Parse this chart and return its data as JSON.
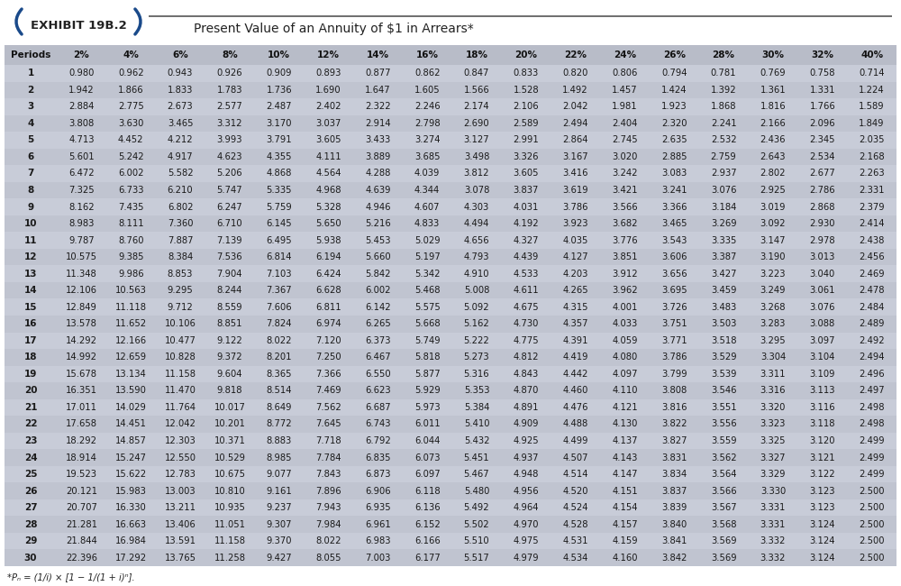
{
  "title": "Present Value of an Annuity of $1 in Arrears*",
  "exhibit_label": "EXHIBIT 19B.2",
  "footnote": "*Pₙ = (1/i) × [1 − 1/(1 + i)ⁿ].",
  "columns": [
    "Periods",
    "2%",
    "4%",
    "6%",
    "8%",
    "10%",
    "12%",
    "14%",
    "16%",
    "18%",
    "20%",
    "22%",
    "24%",
    "26%",
    "28%",
    "30%",
    "32%",
    "40%"
  ],
  "rows": [
    [
      1,
      0.98,
      0.962,
      0.943,
      0.926,
      0.909,
      0.893,
      0.877,
      0.862,
      0.847,
      0.833,
      0.82,
      0.806,
      0.794,
      0.781,
      0.769,
      0.758,
      0.714
    ],
    [
      2,
      1.942,
      1.866,
      1.833,
      1.783,
      1.736,
      1.69,
      1.647,
      1.605,
      1.566,
      1.528,
      1.492,
      1.457,
      1.424,
      1.392,
      1.361,
      1.331,
      1.224
    ],
    [
      3,
      2.884,
      2.775,
      2.673,
      2.577,
      2.487,
      2.402,
      2.322,
      2.246,
      2.174,
      2.106,
      2.042,
      1.981,
      1.923,
      1.868,
      1.816,
      1.766,
      1.589
    ],
    [
      4,
      3.808,
      3.63,
      3.465,
      3.312,
      3.17,
      3.037,
      2.914,
      2.798,
      2.69,
      2.589,
      2.494,
      2.404,
      2.32,
      2.241,
      2.166,
      2.096,
      1.849
    ],
    [
      5,
      4.713,
      4.452,
      4.212,
      3.993,
      3.791,
      3.605,
      3.433,
      3.274,
      3.127,
      2.991,
      2.864,
      2.745,
      2.635,
      2.532,
      2.436,
      2.345,
      2.035
    ],
    [
      6,
      5.601,
      5.242,
      4.917,
      4.623,
      4.355,
      4.111,
      3.889,
      3.685,
      3.498,
      3.326,
      3.167,
      3.02,
      2.885,
      2.759,
      2.643,
      2.534,
      2.168
    ],
    [
      7,
      6.472,
      6.002,
      5.582,
      5.206,
      4.868,
      4.564,
      4.288,
      4.039,
      3.812,
      3.605,
      3.416,
      3.242,
      3.083,
      2.937,
      2.802,
      2.677,
      2.263
    ],
    [
      8,
      7.325,
      6.733,
      6.21,
      5.747,
      5.335,
      4.968,
      4.639,
      4.344,
      3.078,
      3.837,
      3.619,
      3.421,
      3.241,
      3.076,
      2.925,
      2.786,
      2.331
    ],
    [
      9,
      8.162,
      7.435,
      6.802,
      6.247,
      5.759,
      5.328,
      4.946,
      4.607,
      4.303,
      4.031,
      3.786,
      3.566,
      3.366,
      3.184,
      3.019,
      2.868,
      2.379
    ],
    [
      10,
      8.983,
      8.111,
      7.36,
      6.71,
      6.145,
      5.65,
      5.216,
      4.833,
      4.494,
      4.192,
      3.923,
      3.682,
      3.465,
      3.269,
      3.092,
      2.93,
      2.414
    ],
    [
      11,
      9.787,
      8.76,
      7.887,
      7.139,
      6.495,
      5.938,
      5.453,
      5.029,
      4.656,
      4.327,
      4.035,
      3.776,
      3.543,
      3.335,
      3.147,
      2.978,
      2.438
    ],
    [
      12,
      10.575,
      9.385,
      8.384,
      7.536,
      6.814,
      6.194,
      5.66,
      5.197,
      4.793,
      4.439,
      4.127,
      3.851,
      3.606,
      3.387,
      3.19,
      3.013,
      2.456
    ],
    [
      13,
      11.348,
      9.986,
      8.853,
      7.904,
      7.103,
      6.424,
      5.842,
      5.342,
      4.91,
      4.533,
      4.203,
      3.912,
      3.656,
      3.427,
      3.223,
      3.04,
      2.469
    ],
    [
      14,
      12.106,
      10.563,
      9.295,
      8.244,
      7.367,
      6.628,
      6.002,
      5.468,
      5.008,
      4.611,
      4.265,
      3.962,
      3.695,
      3.459,
      3.249,
      3.061,
      2.478
    ],
    [
      15,
      12.849,
      11.118,
      9.712,
      8.559,
      7.606,
      6.811,
      6.142,
      5.575,
      5.092,
      4.675,
      4.315,
      4.001,
      3.726,
      3.483,
      3.268,
      3.076,
      2.484
    ],
    [
      16,
      13.578,
      11.652,
      10.106,
      8.851,
      7.824,
      6.974,
      6.265,
      5.668,
      5.162,
      4.73,
      4.357,
      4.033,
      3.751,
      3.503,
      3.283,
      3.088,
      2.489
    ],
    [
      17,
      14.292,
      12.166,
      10.477,
      9.122,
      8.022,
      7.12,
      6.373,
      5.749,
      5.222,
      4.775,
      4.391,
      4.059,
      3.771,
      3.518,
      3.295,
      3.097,
      2.492
    ],
    [
      18,
      14.992,
      12.659,
      10.828,
      9.372,
      8.201,
      7.25,
      6.467,
      5.818,
      5.273,
      4.812,
      4.419,
      4.08,
      3.786,
      3.529,
      3.304,
      3.104,
      2.494
    ],
    [
      19,
      15.678,
      13.134,
      11.158,
      9.604,
      8.365,
      7.366,
      6.55,
      5.877,
      5.316,
      4.843,
      4.442,
      4.097,
      3.799,
      3.539,
      3.311,
      3.109,
      2.496
    ],
    [
      20,
      16.351,
      13.59,
      11.47,
      9.818,
      8.514,
      7.469,
      6.623,
      5.929,
      5.353,
      4.87,
      4.46,
      4.11,
      3.808,
      3.546,
      3.316,
      3.113,
      2.497
    ],
    [
      21,
      17.011,
      14.029,
      11.764,
      10.017,
      8.649,
      7.562,
      6.687,
      5.973,
      5.384,
      4.891,
      4.476,
      4.121,
      3.816,
      3.551,
      3.32,
      3.116,
      2.498
    ],
    [
      22,
      17.658,
      14.451,
      12.042,
      10.201,
      8.772,
      7.645,
      6.743,
      6.011,
      5.41,
      4.909,
      4.488,
      4.13,
      3.822,
      3.556,
      3.323,
      3.118,
      2.498
    ],
    [
      23,
      18.292,
      14.857,
      12.303,
      10.371,
      8.883,
      7.718,
      6.792,
      6.044,
      5.432,
      4.925,
      4.499,
      4.137,
      3.827,
      3.559,
      3.325,
      3.12,
      2.499
    ],
    [
      24,
      18.914,
      15.247,
      12.55,
      10.529,
      8.985,
      7.784,
      6.835,
      6.073,
      5.451,
      4.937,
      4.507,
      4.143,
      3.831,
      3.562,
      3.327,
      3.121,
      2.499
    ],
    [
      25,
      19.523,
      15.622,
      12.783,
      10.675,
      9.077,
      7.843,
      6.873,
      6.097,
      5.467,
      4.948,
      4.514,
      4.147,
      3.834,
      3.564,
      3.329,
      3.122,
      2.499
    ],
    [
      26,
      20.121,
      15.983,
      13.003,
      10.81,
      9.161,
      7.896,
      6.906,
      6.118,
      5.48,
      4.956,
      4.52,
      4.151,
      3.837,
      3.566,
      3.33,
      3.123,
      2.5
    ],
    [
      27,
      20.707,
      16.33,
      13.211,
      10.935,
      9.237,
      7.943,
      6.935,
      6.136,
      5.492,
      4.964,
      4.524,
      4.154,
      3.839,
      3.567,
      3.331,
      3.123,
      2.5
    ],
    [
      28,
      21.281,
      16.663,
      13.406,
      11.051,
      9.307,
      7.984,
      6.961,
      6.152,
      5.502,
      4.97,
      4.528,
      4.157,
      3.84,
      3.568,
      3.331,
      3.124,
      2.5
    ],
    [
      29,
      21.844,
      16.984,
      13.591,
      11.158,
      9.37,
      8.022,
      6.983,
      6.166,
      5.51,
      4.975,
      4.531,
      4.159,
      3.841,
      3.569,
      3.332,
      3.124,
      2.5
    ],
    [
      30,
      22.396,
      17.292,
      13.765,
      11.258,
      9.427,
      8.055,
      7.003,
      6.177,
      5.517,
      4.979,
      4.534,
      4.16,
      3.842,
      3.569,
      3.332,
      3.124,
      2.5
    ]
  ],
  "header_bg": "#b8bcc8",
  "row_bg_odd": "#c8ccd8",
  "row_bg_even": "#c0c4d0",
  "text_color": "#1a1a1a",
  "header_text_color": "#111111",
  "background_color": "#ffffff",
  "bracket_color": "#1a4a8a",
  "line_color": "#555555"
}
